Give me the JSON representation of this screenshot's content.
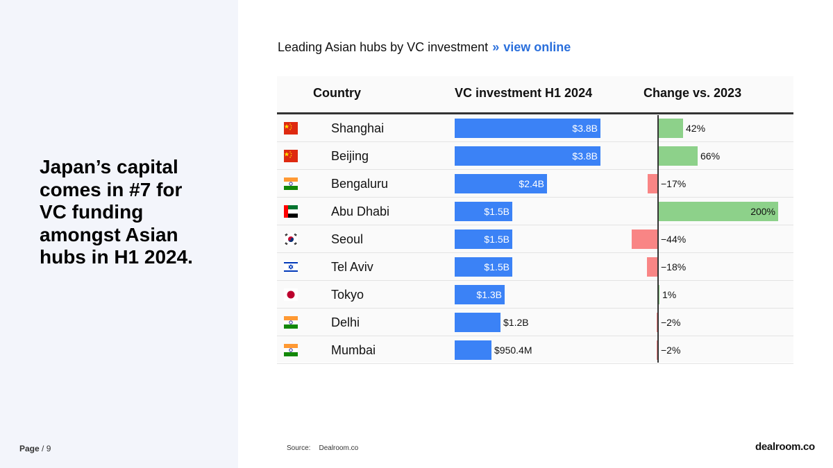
{
  "headline": "Japan’s capital comes in #7 for VC funding amongst Asian hubs in H1 2024.",
  "page": {
    "label": "Page",
    "number": "/ 9"
  },
  "chart_title": {
    "text": "Leading Asian hubs by VC investment",
    "sep": "»",
    "link": "view online"
  },
  "columns": {
    "country": "Country",
    "investment": "VC investment H1 2024",
    "change": "Change vs. 2023"
  },
  "source": {
    "label": "Source:",
    "value": "Dealroom.co"
  },
  "logo": "dealroom.co",
  "colors": {
    "investment_bar": "#3b82f6",
    "positive": "#8dd18a",
    "negative": "#f98585"
  },
  "chart_data": {
    "type": "table",
    "columns": [
      "Country",
      "VC investment H1 2024",
      "Change vs. 2023"
    ],
    "rows": [
      {
        "flag": "china-flag-icon",
        "city": "Shanghai",
        "investment": 3.8,
        "investment_label": "$3.8B",
        "change": 42,
        "change_label": "42%"
      },
      {
        "flag": "china-flag-icon",
        "city": "Beijing",
        "investment": 3.8,
        "investment_label": "$3.8B",
        "change": 66,
        "change_label": "66%"
      },
      {
        "flag": "india-flag-icon",
        "city": "Bengaluru",
        "investment": 2.4,
        "investment_label": "$2.4B",
        "change": -17,
        "change_label": "−17%"
      },
      {
        "flag": "uae-flag-icon",
        "city": "Abu Dhabi",
        "investment": 1.5,
        "investment_label": "$1.5B",
        "change": 200,
        "change_label": "200%"
      },
      {
        "flag": "south-korea-flag-icon",
        "city": "Seoul",
        "investment": 1.5,
        "investment_label": "$1.5B",
        "change": -44,
        "change_label": "−44%"
      },
      {
        "flag": "israel-flag-icon",
        "city": "Tel Aviv",
        "investment": 1.5,
        "investment_label": "$1.5B",
        "change": -18,
        "change_label": "−18%"
      },
      {
        "flag": "japan-flag-icon",
        "city": "Tokyo",
        "investment": 1.3,
        "investment_label": "$1.3B",
        "change": 1,
        "change_label": "1%"
      },
      {
        "flag": "india-flag-icon",
        "city": "Delhi",
        "investment": 1.2,
        "investment_label": "$1.2B",
        "change": -2,
        "change_label": "−2%"
      },
      {
        "flag": "india-flag-icon",
        "city": "Mumbai",
        "investment": 0.9504,
        "investment_label": "$950.4M",
        "change": -2,
        "change_label": "−2%"
      }
    ],
    "investment_unit": "USD billions",
    "investment_max": 3.8,
    "change_unit": "percent",
    "change_max": 200
  }
}
